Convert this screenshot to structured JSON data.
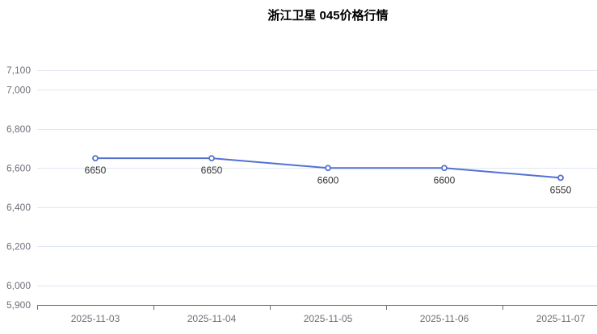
{
  "chart_data": {
    "type": "line",
    "title": "浙江卫星 045价格行情",
    "x": [
      "2025-11-03",
      "2025-11-04",
      "2025-11-05",
      "2025-11-06",
      "2025-11-07"
    ],
    "series": [
      {
        "name": "价格",
        "values": [
          6650,
          6650,
          6600,
          6600,
          6550
        ]
      }
    ],
    "point_labels": [
      "6650",
      "6650",
      "6600",
      "6600",
      "6550"
    ],
    "xlabel": "",
    "ylabel": "",
    "ylim": [
      5900,
      7100
    ],
    "ytick_values": [
      5900,
      6000,
      6200,
      6400,
      6600,
      6800,
      7000,
      7100
    ],
    "ytick_labels": [
      "5,900",
      "6,000",
      "6,200",
      "6,400",
      "6,600",
      "6,800",
      "7,000",
      "7,100"
    ],
    "grid": true,
    "legend_position": "none",
    "colors": {
      "line": "#5271d2",
      "point_fill": "#ffffff",
      "grid_line": "#e0e6f1",
      "axis_line": "#6e7079",
      "axis_label": "#6e7079",
      "data_label": "#333333",
      "title": "#000000",
      "background": "#ffffff"
    }
  }
}
